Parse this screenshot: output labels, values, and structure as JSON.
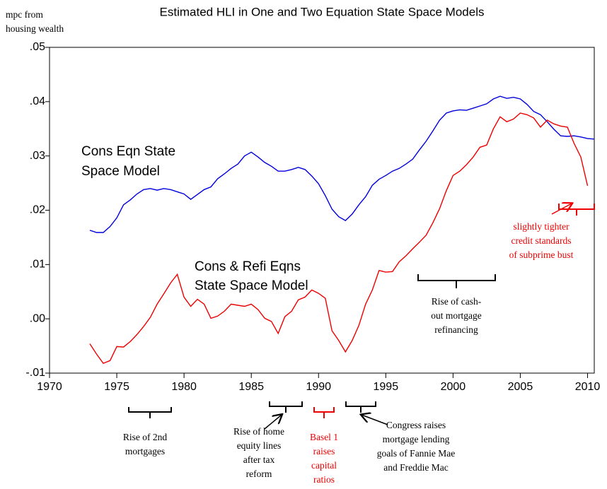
{
  "chart_data": {
    "type": "line",
    "title": "Estimated HLI in One and Two Equation State Space Models",
    "y_label_lines": [
      "mpc from",
      "housing wealth"
    ],
    "xlim": [
      1970,
      2010.5
    ],
    "ylim": [
      -0.01,
      0.05
    ],
    "xticks": [
      1970,
      1975,
      1980,
      1985,
      1990,
      1995,
      2000,
      2005,
      2010
    ],
    "yticks": [
      {
        "value": -0.01,
        "label": "-.01"
      },
      {
        "value": 0,
        "label": ".00"
      },
      {
        "value": 0.01,
        "label": ".01"
      },
      {
        "value": 0.02,
        "label": ".02"
      },
      {
        "value": 0.03,
        "label": ".03"
      },
      {
        "value": 0.04,
        "label": ".04"
      },
      {
        "value": 0.05,
        "label": ".05"
      }
    ],
    "x": [
      1973,
      1973.5,
      1974,
      1974.5,
      1975,
      1975.5,
      1976,
      1976.5,
      1977,
      1977.5,
      1978,
      1978.5,
      1979,
      1979.5,
      1980,
      1980.5,
      1981,
      1981.5,
      1982,
      1982.5,
      1983,
      1983.5,
      1984,
      1984.5,
      1985,
      1985.5,
      1986,
      1986.5,
      1987,
      1987.5,
      1988,
      1988.5,
      1989,
      1989.5,
      1990,
      1990.5,
      1991,
      1991.5,
      1992,
      1992.5,
      1993,
      1993.5,
      1994,
      1994.5,
      1995,
      1995.5,
      1996,
      1996.5,
      1997,
      1997.5,
      1998,
      1998.5,
      1999,
      1999.5,
      2000,
      2000.5,
      2001,
      2001.5,
      2002,
      2002.5,
      2003,
      2003.5,
      2004,
      2004.5,
      2005,
      2005.5,
      2006,
      2006.5,
      2007,
      2007.5,
      2008,
      2008.5,
      2009,
      2009.5,
      2010,
      2010.5
    ],
    "series": [
      {
        "color": "#0000dd",
        "values": [
          0.0163,
          0.0159,
          0.0159,
          0.017,
          0.0186,
          0.021,
          0.0219,
          0.023,
          0.0238,
          0.024,
          0.0237,
          0.024,
          0.0238,
          0.0234,
          0.023,
          0.022,
          0.0229,
          0.0238,
          0.0243,
          0.0258,
          0.0267,
          0.0277,
          0.0285,
          0.03,
          0.0307,
          0.0298,
          0.0288,
          0.0281,
          0.0272,
          0.0272,
          0.0275,
          0.0279,
          0.0275,
          0.0263,
          0.0249,
          0.0227,
          0.0202,
          0.0188,
          0.0181,
          0.0193,
          0.021,
          0.0225,
          0.0246,
          0.0257,
          0.0264,
          0.0272,
          0.0277,
          0.0285,
          0.0294,
          0.0311,
          0.0327,
          0.0346,
          0.0366,
          0.0379,
          0.0383,
          0.0385,
          0.0384,
          0.0388,
          0.0392,
          0.0396,
          0.0405,
          0.041,
          0.0406,
          0.0408,
          0.0405,
          0.0395,
          0.0382,
          0.0376,
          0.0363,
          0.0349,
          0.0337,
          0.0336,
          0.0337,
          0.0335,
          0.0332,
          0.0331
        ]
      },
      {
        "color": "#ee0000",
        "values": [
          -0.0046,
          -0.0065,
          -0.0082,
          -0.0077,
          -0.0051,
          -0.0052,
          -0.0042,
          -0.0029,
          -0.0014,
          0.0003,
          0.0027,
          0.0046,
          0.0066,
          0.0082,
          0.004,
          0.0023,
          0.0036,
          0.0027,
          0.0001,
          0.0005,
          0.0014,
          0.0027,
          0.0025,
          0.0023,
          0.0027,
          0.0017,
          0.0001,
          -0.0005,
          -0.0027,
          0.0004,
          0.0014,
          0.0035,
          0.004,
          0.0053,
          0.0047,
          0.0038,
          -0.0022,
          -0.004,
          -0.0061,
          -0.004,
          -0.0012,
          0.0027,
          0.0053,
          0.0089,
          0.0086,
          0.0087,
          0.0105,
          0.0116,
          0.0129,
          0.0141,
          0.0154,
          0.0177,
          0.0203,
          0.0236,
          0.0264,
          0.0272,
          0.0284,
          0.0298,
          0.0316,
          0.032,
          0.035,
          0.0372,
          0.0363,
          0.0368,
          0.0379,
          0.0376,
          0.037,
          0.0353,
          0.0366,
          0.0359,
          0.0355,
          0.0353,
          0.0323,
          0.0298,
          0.0245,
          null
        ]
      }
    ],
    "annotations": [
      {
        "lines": [
          "Cons Eqn State",
          "Space Model"
        ],
        "color": "#000000"
      },
      {
        "lines": [
          "Cons & Refi Eqns",
          "State Space Model"
        ],
        "color": "#000000"
      },
      {
        "lines": [
          "Rise of cash-",
          "out  mortgage",
          "refinancing"
        ],
        "color": "#000000"
      },
      {
        "lines": [
          "slightly tighter",
          "credit standards",
          "of subprime bust"
        ],
        "color": "#ee0000"
      },
      {
        "lines": [
          "Rise of 2nd",
          "mortgages"
        ],
        "color": "#000000"
      },
      {
        "lines": [
          "Rise of home",
          "equity lines",
          "after tax",
          "reform"
        ],
        "color": "#000000"
      },
      {
        "lines": [
          "Basel 1",
          "raises",
          "capital",
          "ratios"
        ],
        "color": "#ee0000"
      },
      {
        "lines": [
          "Congress raises",
          "mortgage lending",
          "goals of Fannie Mae",
          "and Freddie Mac"
        ],
        "color": "#000000"
      }
    ]
  }
}
